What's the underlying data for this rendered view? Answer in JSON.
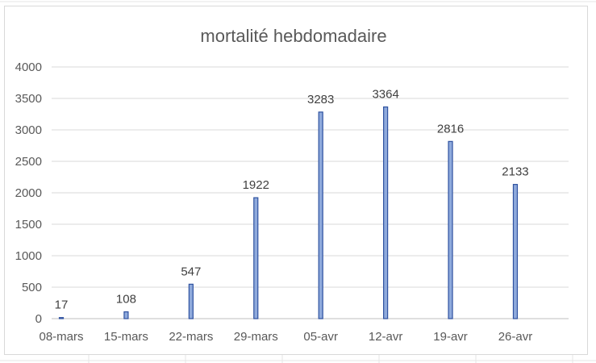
{
  "chart_data": {
    "type": "bar",
    "title": "mortalité hebdomadaire",
    "xlabel": "",
    "ylabel": "",
    "categories": [
      "08-mars",
      "15-mars",
      "22-mars",
      "29-mars",
      "05-avr",
      "12-avr",
      "19-avr",
      "26-avr"
    ],
    "values": [
      17,
      108,
      547,
      1922,
      3283,
      3364,
      2816,
      2133
    ],
    "ylim": [
      0,
      4000
    ],
    "yticks": [
      0,
      500,
      1000,
      1500,
      2000,
      2500,
      3000,
      3500,
      4000
    ],
    "data_labels": true,
    "grid": true,
    "legend": "none",
    "colors": {
      "bar_fill": "#8faadc",
      "bar_stroke": "#2f52a0",
      "grid": "#d9d9d9",
      "text": "#595959"
    }
  }
}
